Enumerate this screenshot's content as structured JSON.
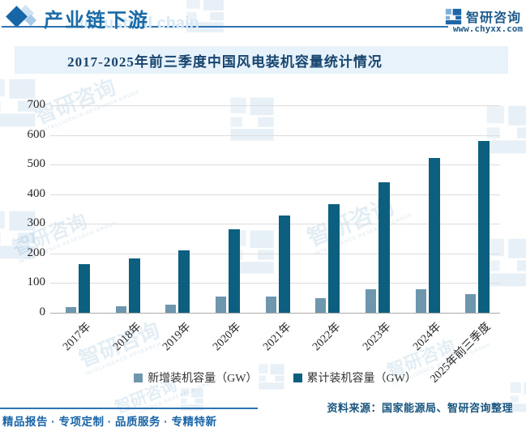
{
  "header": {
    "section_title": "产业链下游",
    "bg_watermark": "Industrial chain",
    "brand": "智研咨询",
    "website": "www.chyxx.com"
  },
  "chart_data": {
    "type": "bar",
    "title": "2017-2025年前三季度中国风电装机容量统计情况",
    "categories": [
      "2017年",
      "2018年",
      "2019年",
      "2020年",
      "2021年",
      "2022年",
      "2023年",
      "2024年",
      "2025年前三季度"
    ],
    "series": [
      {
        "name": "新增装机容量（GW）",
        "color": "#6e97ad",
        "values": [
          20,
          21,
          26,
          54,
          56,
          50,
          79,
          80,
          62
        ]
      },
      {
        "name": "累计装机容量（GW）",
        "color": "#0d5f7f",
        "values": [
          164,
          184,
          210,
          282,
          329,
          366,
          441,
          521,
          581
        ]
      }
    ],
    "xlabel": "",
    "ylabel": "",
    "ylim": [
      0,
      700
    ],
    "ytick_step": 100,
    "grid": true,
    "legend_position": "bottom",
    "gridline_color": "#dcdcdc"
  },
  "watermark": {
    "cn": "智研咨询",
    "en": "INTELLIGENCE RESEARCH GROUP"
  },
  "footer": {
    "source": "资料来源：国家能源局、智研咨询整理",
    "tagline": "精品报告 · 专项定制 · 品质服务 · 专精特新"
  },
  "colors": {
    "accent_blue": "#2e74b5",
    "header_title": "#1b6ba6",
    "band_bg": "#e7f2fb",
    "band_title": "#17456e",
    "new_capacity_bar": "#6e97ad",
    "cumulative_bar": "#0d5f7f"
  }
}
